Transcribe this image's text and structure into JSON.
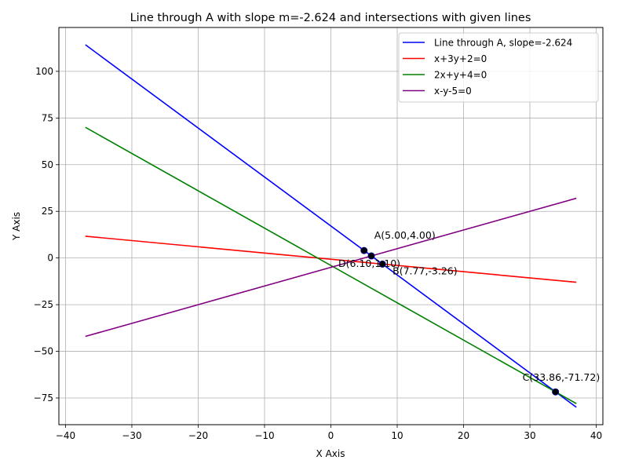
{
  "chart_data": {
    "type": "line",
    "title": "Line through A with slope m=-2.624 and intersections with given lines",
    "xlabel": "X Axis",
    "ylabel": "Y Axis",
    "xlim": [
      -41,
      41
    ],
    "ylim": [
      -89.3,
      123.5
    ],
    "xticks": [
      -40,
      -30,
      -20,
      -10,
      0,
      10,
      20,
      30,
      40
    ],
    "yticks": [
      -75,
      -50,
      -25,
      0,
      25,
      50,
      75,
      100
    ],
    "grid": true,
    "legend_position": "top-right",
    "series": [
      {
        "name": "Line through A, slope=-2.624",
        "color": "#0000ff",
        "x": [
          -37,
          37
        ],
        "y": [
          114.24,
          -79.94
        ]
      },
      {
        "name": "x+3y+2=0",
        "color": "#ff0000",
        "x": [
          -37,
          37
        ],
        "y": [
          11.67,
          -13.0
        ]
      },
      {
        "name": "2x+y+4=0",
        "color": "#008000",
        "x": [
          -37,
          37
        ],
        "y": [
          70,
          -78
        ]
      },
      {
        "name": "x-y-5=0",
        "color": "#800080",
        "x": [
          -37,
          37
        ],
        "y": [
          -42,
          32
        ]
      }
    ],
    "points": [
      {
        "label": "A(5.00,4.00)",
        "x": 5.0,
        "y": 4.0
      },
      {
        "label": "B(7.77,-3.26)",
        "x": 7.77,
        "y": -3.26
      },
      {
        "label": "C(33.86,-71.72)",
        "x": 33.86,
        "y": -71.72
      },
      {
        "label": "D(6.10,1.10)",
        "x": 6.1,
        "y": 1.1
      }
    ]
  }
}
